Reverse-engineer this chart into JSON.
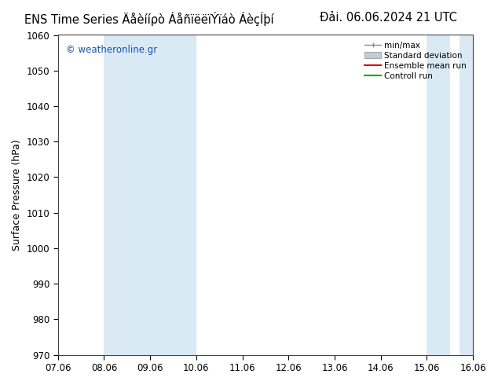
{
  "title_left": "ENS Time Series Äåèííρò ÁåñïëëïÝïáò ÁèçÍþí",
  "title_right": "Đải. 06.06.2024 21 UTC",
  "ylabel": "Surface Pressure (hPa)",
  "ylim": [
    970,
    1060
  ],
  "yticks": [
    970,
    980,
    990,
    1000,
    1010,
    1020,
    1030,
    1040,
    1050,
    1060
  ],
  "xtick_labels": [
    "07.06",
    "08.06",
    "09.06",
    "10.06",
    "11.06",
    "12.06",
    "13.06",
    "14.06",
    "15.06",
    "16.06"
  ],
  "band_color": "#daeaf5",
  "background_color": "#ffffff",
  "ax_background": "#ffffff",
  "watermark": "© weatheronline.gr",
  "watermark_color": "#1155aa",
  "spine_color": "#444444",
  "title_fontsize": 10.5,
  "tick_fontsize": 8.5,
  "ylabel_fontsize": 9
}
